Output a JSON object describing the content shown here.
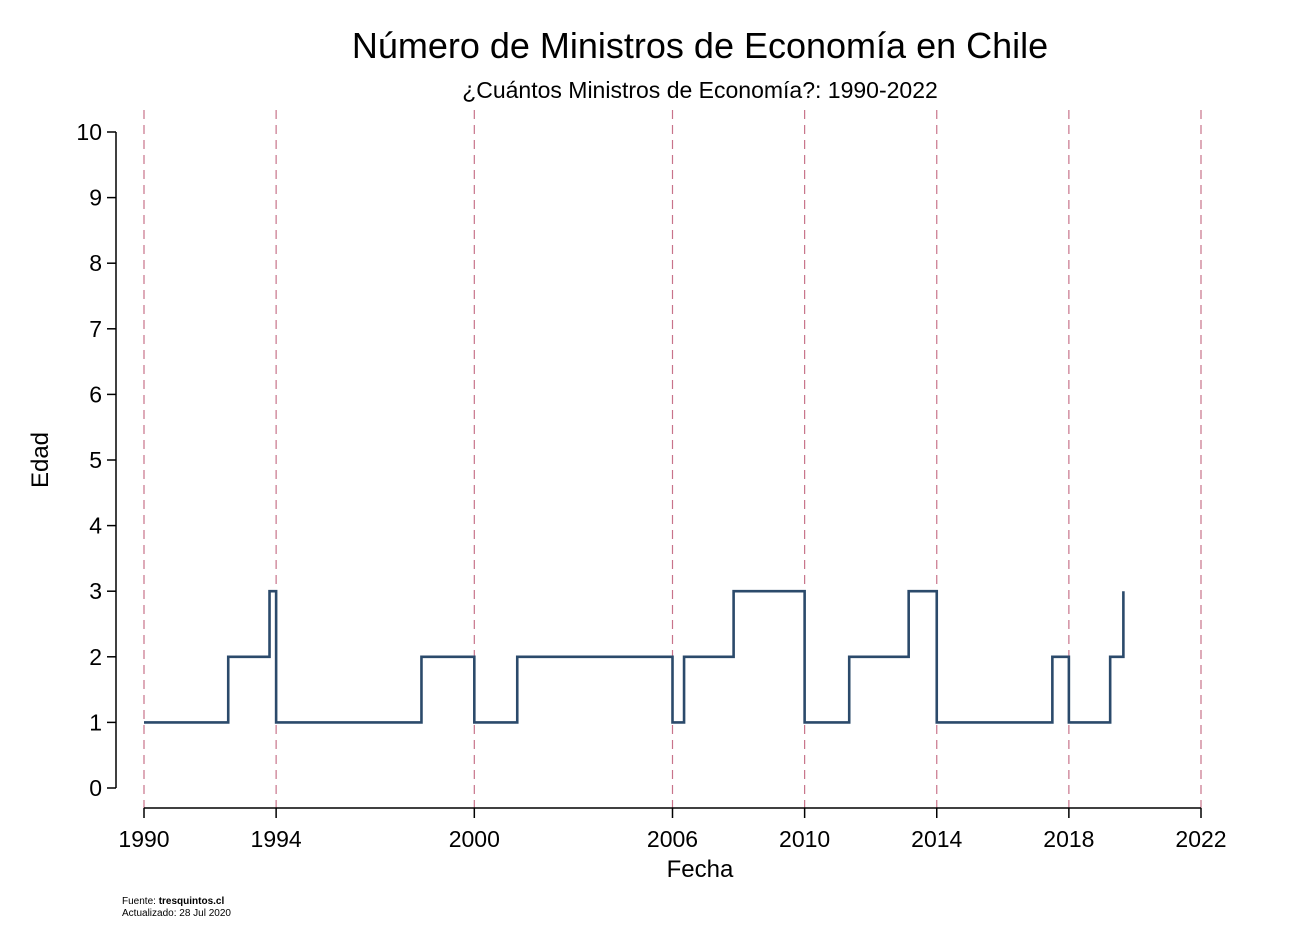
{
  "chart_data": {
    "type": "line",
    "title": "Número de Ministros de Economía en Chile",
    "subtitle": "¿Cuántos Ministros de Economía?: 1990-2022",
    "xlabel": "Fecha",
    "ylabel": "Edad",
    "xlim": [
      1990,
      2022
    ],
    "ylim": [
      0,
      10
    ],
    "x_ticks": [
      1990,
      1994,
      2000,
      2006,
      2010,
      2014,
      2018,
      2022
    ],
    "y_ticks": [
      0,
      1,
      2,
      3,
      4,
      5,
      6,
      7,
      8,
      9,
      10
    ],
    "reference_lines_x": [
      1990,
      1994,
      2000,
      2006,
      2010,
      2014,
      2018,
      2022
    ],
    "grid": false,
    "legend": "none",
    "colors": {
      "series": "#2b4a6b",
      "reference_lines": "#c8738a",
      "axis": "#000000"
    },
    "series": [
      {
        "step": true,
        "x": [
          1990.0,
          1992.55,
          1993.8,
          1994.0,
          1998.4,
          2000.0,
          2001.3,
          2006.0,
          2006.35,
          2007.85,
          2010.0,
          2011.35,
          2013.15,
          2014.0,
          2017.5,
          2018.0,
          2019.25,
          2019.65
        ],
        "y": [
          1,
          2,
          3,
          1,
          2,
          1,
          2,
          1,
          2,
          3,
          1,
          2,
          3,
          1,
          2,
          1,
          2,
          3
        ]
      }
    ]
  },
  "footer": {
    "source_label": "Fuente: ",
    "source_value": "tresquintos.cl",
    "updated": "Actualizado: 28 Jul 2020"
  }
}
